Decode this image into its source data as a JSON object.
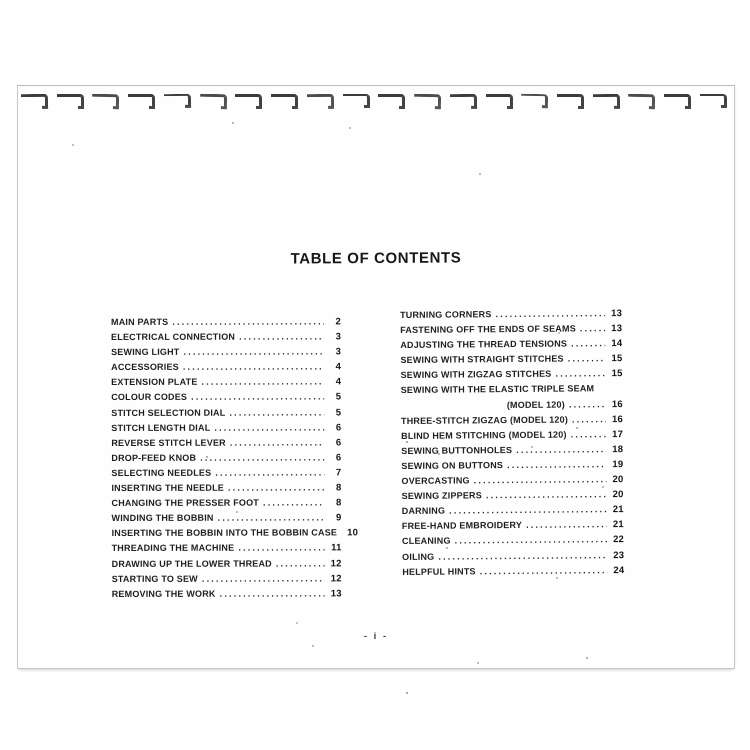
{
  "document": {
    "title": "TABLE OF CONTENTS",
    "footer_page_number": "- i -",
    "toc": {
      "left_column": [
        {
          "label": "MAIN PARTS",
          "page": "2"
        },
        {
          "label": "ELECTRICAL CONNECTION",
          "page": "3"
        },
        {
          "label": "SEWING LIGHT",
          "page": "3"
        },
        {
          "label": "ACCESSORIES",
          "page": "4"
        },
        {
          "label": "EXTENSION PLATE",
          "page": "4"
        },
        {
          "label": "COLOUR CODES",
          "page": "5"
        },
        {
          "label": "STITCH SELECTION DIAL",
          "page": "5"
        },
        {
          "label": "STITCH LENGTH DIAL",
          "page": "6"
        },
        {
          "label": "REVERSE STITCH LEVER",
          "page": "6"
        },
        {
          "label": "DROP-FEED KNOB",
          "page": "6"
        },
        {
          "label": "SELECTING NEEDLES",
          "page": "7"
        },
        {
          "label": "INSERTING THE NEEDLE",
          "page": "8"
        },
        {
          "label": "CHANGING THE PRESSER FOOT",
          "page": "8"
        },
        {
          "label": "WINDING THE BOBBIN",
          "page": "9"
        },
        {
          "label": "INSERTING THE BOBBIN INTO THE BOBBIN CASE",
          "page": "10"
        },
        {
          "label": "THREADING THE MACHINE",
          "page": "11"
        },
        {
          "label": "DRAWING UP THE LOWER THREAD",
          "page": "12"
        },
        {
          "label": "STARTING TO SEW",
          "page": "12"
        },
        {
          "label": "REMOVING THE WORK",
          "page": "13"
        }
      ],
      "right_column": [
        {
          "label": "TURNING CORNERS",
          "page": "13"
        },
        {
          "label": "FASTENING OFF THE ENDS OF SEAMS",
          "page": "13"
        },
        {
          "label": "ADJUSTING THE THREAD TENSIONS",
          "page": "14"
        },
        {
          "label": "SEWING WITH STRAIGHT STITCHES",
          "page": "15"
        },
        {
          "label": "SEWING WITH ZIGZAG STITCHES",
          "page": "15"
        },
        {
          "label": "SEWING WITH THE ELASTIC TRIPLE SEAM",
          "page": "",
          "nodots": true
        },
        {
          "label": "(MODEL 120)",
          "page": "16",
          "indent": true
        },
        {
          "label": "THREE-STITCH ZIGZAG (MODEL 120)",
          "page": "16"
        },
        {
          "label": "BLIND HEM STITCHING (MODEL 120)",
          "page": "17"
        },
        {
          "label": "SEWING BUTTONHOLES",
          "page": "18"
        },
        {
          "label": "SEWING ON BUTTONS",
          "page": "19"
        },
        {
          "label": "OVERCASTING",
          "page": "20"
        },
        {
          "label": "SEWING ZIPPERS",
          "page": "20"
        },
        {
          "label": "DARNING",
          "page": "21"
        },
        {
          "label": "FREE-HAND EMBROIDERY",
          "page": "21"
        },
        {
          "label": "CLEANING",
          "page": "22"
        },
        {
          "label": "OILING",
          "page": "23"
        },
        {
          "label": "HELPFUL HINTS",
          "page": "24"
        }
      ]
    }
  },
  "colors": {
    "ink": "#1e1e1e",
    "page_border": "#c7c7c7",
    "binding_hook": "#2e2e2e"
  }
}
